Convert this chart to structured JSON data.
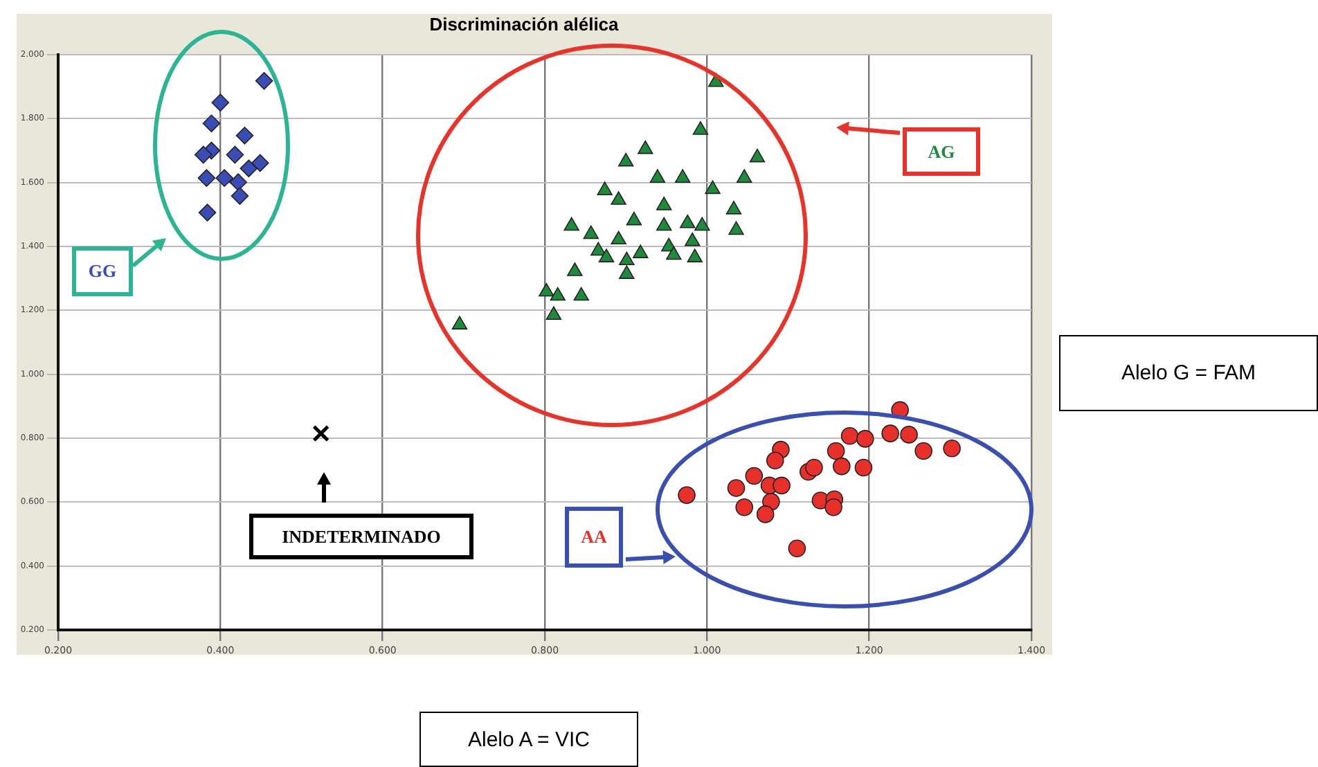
{
  "chart_data": {
    "type": "scatter",
    "title": "Discriminación alélica",
    "xlabel": "Alelo A = VIC",
    "ylabel": "Alelo G = FAM",
    "xlim": [
      0.2,
      1.4
    ],
    "xticks": [
      {
        "value": 0.2,
        "label": "0.200"
      },
      {
        "value": 0.4,
        "label": "0.400"
      },
      {
        "value": 0.6,
        "label": "0.600"
      },
      {
        "value": 0.8,
        "label": "0.800"
      },
      {
        "value": 1.0,
        "label": "1.000"
      },
      {
        "value": 1.2,
        "label": "1.200"
      },
      {
        "value": 1.4,
        "label": "1.400"
      }
    ],
    "ylim": [
      0.2,
      2.0
    ],
    "yticks": [
      {
        "value": 0.2,
        "label": "0.200"
      },
      {
        "value": 0.4,
        "label": "0.400"
      },
      {
        "value": 0.6,
        "label": "0.600"
      },
      {
        "value": 0.8,
        "label": "0.800"
      },
      {
        "value": 1.0,
        "label": "1.000"
      },
      {
        "value": 1.2,
        "label": "1.200"
      },
      {
        "value": 1.4,
        "label": "1.400"
      },
      {
        "value": 1.6,
        "label": "1.600"
      },
      {
        "value": 1.8,
        "label": "1.800"
      },
      {
        "value": 2.0,
        "label": "2.000"
      }
    ],
    "grid": true,
    "legend": false,
    "series": [
      {
        "name": "GG",
        "color": "#3a4db5",
        "marker": "diamond",
        "x": [
          0.454,
          0.4,
          0.389,
          0.43,
          0.389,
          0.418,
          0.383,
          0.405,
          0.422,
          0.449,
          0.435,
          0.424,
          0.384,
          0.379
        ],
        "values": [
          1.918,
          1.85,
          1.785,
          1.747,
          1.7,
          1.687,
          1.614,
          1.614,
          1.601,
          1.661,
          1.644,
          1.558,
          1.506,
          1.687
        ]
      },
      {
        "name": "AG",
        "color": "#1e8a3c",
        "marker": "triangle",
        "x": [
          1.011,
          0.992,
          0.924,
          0.9,
          1.062,
          1.046,
          0.97,
          0.939,
          0.874,
          1.007,
          0.891,
          0.947,
          1.033,
          0.833,
          0.857,
          0.91,
          0.947,
          0.976,
          0.994,
          1.036,
          0.891,
          0.866,
          0.918,
          0.953,
          0.982,
          0.876,
          0.901,
          0.959,
          0.985,
          0.837,
          0.901,
          0.802,
          0.816,
          0.845,
          0.811,
          0.695
        ],
        "values": [
          1.914,
          1.764,
          1.704,
          1.665,
          1.678,
          1.614,
          1.614,
          1.614,
          1.575,
          1.579,
          1.545,
          1.528,
          1.515,
          1.464,
          1.438,
          1.481,
          1.464,
          1.472,
          1.464,
          1.451,
          1.421,
          1.386,
          1.378,
          1.399,
          1.416,
          1.365,
          1.356,
          1.373,
          1.365,
          1.322,
          1.313,
          1.258,
          1.245,
          1.245,
          1.185,
          1.155
        ]
      },
      {
        "name": "AA",
        "color": "#e8302a",
        "marker": "circle",
        "x": [
          1.238,
          1.226,
          1.249,
          1.176,
          1.195,
          1.267,
          1.302,
          1.091,
          1.159,
          1.084,
          1.166,
          1.193,
          1.125,
          1.132,
          1.058,
          1.036,
          1.077,
          1.092,
          0.975,
          1.14,
          1.157,
          1.079,
          1.046,
          1.156,
          1.072,
          1.111
        ],
        "values": [
          0.888,
          0.815,
          0.811,
          0.807,
          0.798,
          0.76,
          0.768,
          0.764,
          0.76,
          0.73,
          0.712,
          0.708,
          0.695,
          0.708,
          0.682,
          0.644,
          0.652,
          0.652,
          0.622,
          0.605,
          0.609,
          0.601,
          0.584,
          0.584,
          0.562,
          0.455
        ]
      },
      {
        "name": "INDETERMINADO",
        "color": "#000000",
        "marker": "cross",
        "x": [
          0.524
        ],
        "values": [
          0.815
        ]
      }
    ]
  }
}
